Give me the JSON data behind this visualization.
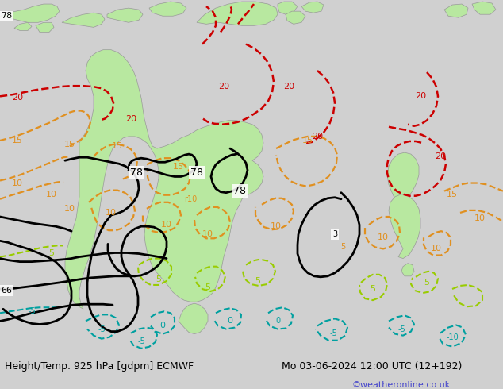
{
  "title_left": "Height/Temp. 925 hPa [gdpm] ECMWF",
  "title_right": "Mo 03-06-2024 12:00 UTC (12+192)",
  "credit": "©weatheronline.co.uk",
  "bg_color": "#d0d0d0",
  "land_color": "#b8e8a0",
  "ocean_color": "#d0d0d0",
  "title_fontsize": 9,
  "credit_color": "#4444cc",
  "bottom_bar_color": "#ffffff"
}
